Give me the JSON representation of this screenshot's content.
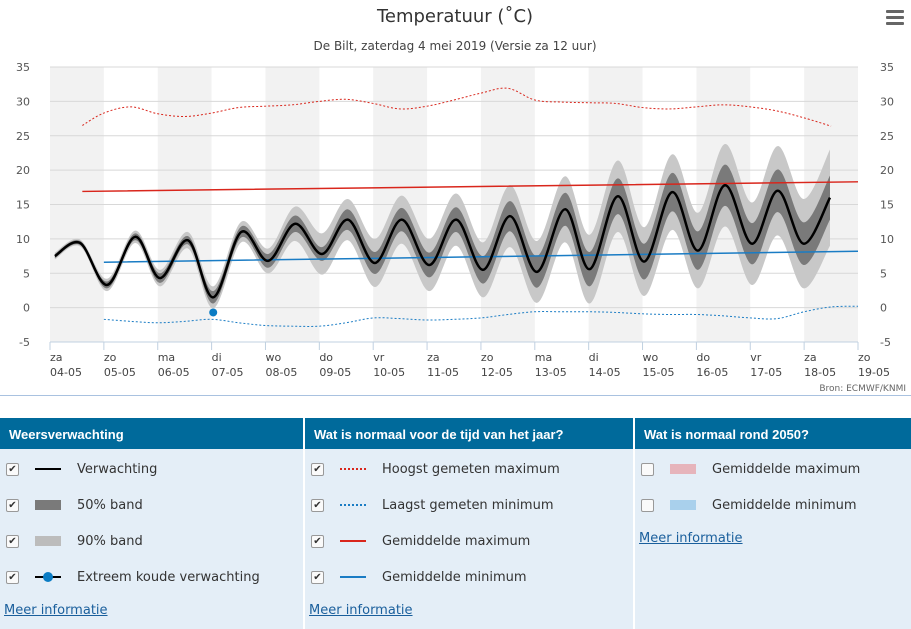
{
  "title": "Temperatuur (˚C)",
  "subtitle": "De Bilt, zaterdag 4 mei 2019 (Versie za 12 uur)",
  "source": "Bron: ECMWF/KNMI",
  "chart_data": {
    "type": "line",
    "ylim": [
      -5,
      35
    ],
    "yticks": [
      -5,
      0,
      5,
      10,
      15,
      20,
      25,
      30,
      35
    ],
    "xlabels": [
      [
        "za",
        "04-05"
      ],
      [
        "zo",
        "05-05"
      ],
      [
        "ma",
        "06-05"
      ],
      [
        "di",
        "07-05"
      ],
      [
        "wo",
        "08-05"
      ],
      [
        "do",
        "09-05"
      ],
      [
        "vr",
        "10-05"
      ],
      [
        "za",
        "11-05"
      ],
      [
        "zo",
        "12-05"
      ],
      [
        "ma",
        "13-05"
      ],
      [
        "di",
        "14-05"
      ],
      [
        "wo",
        "15-05"
      ],
      [
        "do",
        "16-05"
      ],
      [
        "vr",
        "17-05"
      ],
      [
        "za",
        "18-05"
      ],
      [
        "zo",
        "19-05"
      ]
    ],
    "forecast": {
      "x": [
        0.09,
        0.56,
        1.06,
        1.58,
        2.04,
        2.56,
        3.03,
        3.55,
        4.05,
        4.55,
        5.05,
        5.53,
        6.03,
        6.53,
        7.04,
        7.54,
        8.04,
        8.54,
        9.04,
        9.56,
        10.02,
        10.54,
        11.03,
        11.55,
        12.03,
        12.53,
        13.03,
        13.51,
        13.99,
        14.48
      ],
      "y": [
        7.5,
        9.4,
        3.3,
        10.3,
        4.3,
        9.8,
        1.5,
        11.0,
        6.8,
        12.2,
        7.8,
        12.8,
        6.5,
        12.8,
        6.2,
        12.8,
        5.5,
        13.3,
        5.2,
        14.3,
        5.6,
        16.2,
        6.7,
        16.8,
        8.3,
        17.8,
        9.3,
        17.0,
        9.3,
        16.0
      ],
      "band50": [
        0.3,
        0.3,
        0.5,
        0.5,
        0.7,
        0.6,
        0.9,
        0.8,
        1.0,
        1.2,
        1.0,
        1.5,
        1.6,
        1.7,
        1.8,
        1.8,
        2.0,
        2.2,
        2.3,
        2.4,
        2.5,
        2.6,
        2.6,
        2.8,
        2.8,
        3.0,
        3.0,
        3.1,
        3.1,
        3.2
      ],
      "band90": [
        0.5,
        0.5,
        0.9,
        0.9,
        1.2,
        1.2,
        1.6,
        1.5,
        1.8,
        2.5,
        3.0,
        3.0,
        3.5,
        3.5,
        3.8,
        3.8,
        4.0,
        4.5,
        4.5,
        4.8,
        5.0,
        5.2,
        5.0,
        5.5,
        5.5,
        6.0,
        6.0,
        6.5,
        6.5,
        7.0
      ]
    },
    "extreme_cold": {
      "x": 3.03,
      "y": -0.7
    },
    "hoogst_max": {
      "x": [
        0.6,
        1.0,
        1.5,
        2.0,
        2.5,
        3.0,
        3.5,
        4.0,
        4.5,
        5.0,
        5.5,
        6.0,
        6.5,
        7.0,
        7.5,
        8.0,
        8.5,
        9.0,
        9.5,
        10.0,
        10.5,
        11.0,
        11.5,
        12.0,
        12.5,
        13.0,
        13.5,
        14.0,
        14.5
      ],
      "y": [
        26.5,
        28.3,
        29.2,
        28.2,
        27.8,
        28.3,
        29.1,
        29.3,
        29.5,
        30.0,
        30.3,
        29.7,
        28.9,
        29.3,
        30.2,
        31.2,
        31.9,
        30.2,
        29.9,
        29.8,
        29.7,
        29.1,
        28.9,
        29.2,
        29.5,
        29.2,
        28.6,
        27.6,
        26.4
      ]
    },
    "laagst_min": {
      "x": [
        1.0,
        1.5,
        2.0,
        2.5,
        3.0,
        3.5,
        4.0,
        4.5,
        5.0,
        5.5,
        6.0,
        6.5,
        7.0,
        7.5,
        8.0,
        8.5,
        9.0,
        9.5,
        10.0,
        10.5,
        11.0,
        11.5,
        12.0,
        12.5,
        13.0,
        13.5,
        14.0,
        14.5,
        15.0
      ],
      "y": [
        -1.7,
        -2.0,
        -2.2,
        -2.0,
        -1.7,
        -2.2,
        -2.6,
        -2.7,
        -2.7,
        -2.2,
        -1.5,
        -1.6,
        -1.8,
        -1.7,
        -1.5,
        -1.0,
        -0.6,
        -0.6,
        -0.6,
        -0.7,
        -0.9,
        -1.0,
        -1.0,
        -1.2,
        -1.5,
        -1.6,
        -0.6,
        0.1,
        0.2
      ]
    },
    "gem_max": {
      "x": [
        0.6,
        15.0
      ],
      "y": [
        16.9,
        18.3
      ]
    },
    "gem_min": {
      "x": [
        1.0,
        15.0
      ],
      "y": [
        6.6,
        8.2
      ]
    },
    "colors": {
      "forecast": "#000000",
      "band50": "#7a7a7a",
      "band90": "#c8c8c8",
      "extreme": "#0a7cc4",
      "max": "#d9261c",
      "min": "#1a7cc4"
    }
  },
  "legend": {
    "cols": [
      {
        "title": "Weersverwachting",
        "items": [
          "Verwachting",
          "50% band",
          "90% band",
          "Extreem koude verwachting"
        ],
        "link": "Meer informatie"
      },
      {
        "title": "Wat is normaal voor de tijd van het jaar?",
        "items": [
          "Hoogst gemeten maximum",
          "Laagst gemeten minimum",
          "Gemiddelde maximum",
          "Gemiddelde minimum"
        ],
        "link": "Meer informatie"
      },
      {
        "title": "Wat is normaal rond 2050?",
        "items": [
          "Gemiddelde maximum",
          "Gemiddelde minimum"
        ],
        "link": "Meer informatie"
      }
    ],
    "check": "✔"
  }
}
